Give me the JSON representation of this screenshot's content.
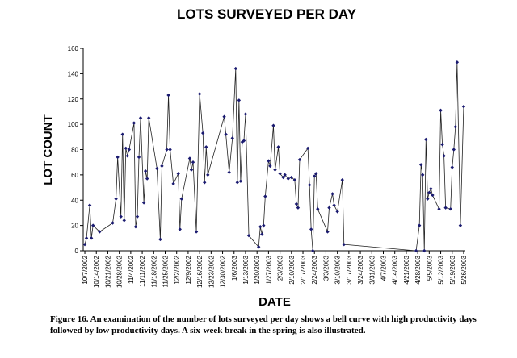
{
  "chart_data": {
    "type": "line",
    "title": "LOTS SURVEYED PER DAY",
    "x_label": "DATE",
    "y_label": "LOT COUNT",
    "caption": [
      "Figure 16.  An examination of the number of lots surveyed per day shows a bell curve with high productivity days",
      "followed by low productivity days.  A six-week break in the spring is also illustrated."
    ],
    "x": [
      "10/7/2002",
      "10/8/2002",
      "10/10/2002",
      "10/11/2002",
      "10/12/2002",
      "10/16/2002",
      "10/24/2002",
      "10/26/2002",
      "10/27/2002",
      "10/29/2002",
      "10/30/2002",
      "10/31/2002",
      "11/1/2002",
      "11/2/2002",
      "11/3/2002",
      "11/6/2002",
      "11/7/2002",
      "11/8/2002",
      "11/9/2002",
      "11/10/2002",
      "11/12/2002",
      "11/13/2002",
      "11/14/2002",
      "11/15/2002",
      "11/20/2002",
      "11/22/2002",
      "11/23/2002",
      "11/26/2002",
      "11/27/2002",
      "11/28/2002",
      "11/30/2002",
      "12/3/2002",
      "12/4/2002",
      "12/5/2002",
      "12/10/2002",
      "12/11/2002",
      "12/12/2002",
      "12/14/2002",
      "12/16/2002",
      "12/18/2002",
      "12/19/2002",
      "12/20/2002",
      "12/21/2002",
      "12/31/2002",
      "1/1/2003",
      "1/3/2003",
      "1/5/2003",
      "1/7/2003",
      "1/8/2003",
      "1/9/2003",
      "1/10/2003",
      "1/11/2003",
      "1/12/2003",
      "1/13/2003",
      "1/15/2003",
      "1/21/2003",
      "1/22/2003",
      "1/23/2003",
      "1/24/2003",
      "1/25/2003",
      "1/27/2003",
      "1/28/2003",
      "1/30/2003",
      "1/31/2003",
      "2/2/2003",
      "2/3/2003",
      "2/5/2003",
      "2/6/2003",
      "2/8/2003",
      "2/10/2003",
      "2/12/2003",
      "2/13/2003",
      "2/14/2003",
      "2/15/2003",
      "2/20/2003",
      "2/21/2003",
      "2/22/2003",
      "2/23/2003",
      "2/24/2003",
      "2/25/2003",
      "2/26/2003",
      "3/4/2003",
      "3/5/2003",
      "3/7/2003",
      "3/8/2003",
      "3/10/2003",
      "3/13/2003",
      "3/14/2003",
      "4/27/2003",
      "4/29/2003",
      "4/30/2003",
      "5/1/2003",
      "5/2/2003",
      "5/3/2003",
      "5/4/2003",
      "5/5/2003",
      "5/6/2003",
      "5/7/2003",
      "5/11/2003",
      "5/12/2003",
      "5/13/2003",
      "5/14/2003",
      "5/15/2003",
      "5/18/2003",
      "5/19/2003",
      "5/20/2003",
      "5/21/2003",
      "5/22/2003",
      "5/24/2003",
      "5/26/2003"
    ],
    "series": [
      {
        "color": "#1a1a70",
        "values": [
          5,
          10,
          36,
          10,
          20,
          15,
          22,
          41,
          74,
          27,
          92,
          24,
          81,
          75,
          80,
          101,
          19,
          27,
          74,
          105,
          38,
          63,
          57,
          105,
          65,
          9,
          67,
          80,
          123,
          80,
          53,
          61,
          17,
          41,
          73,
          64,
          70,
          15,
          124,
          93,
          54,
          82,
          60,
          106,
          92,
          62,
          89,
          144,
          54,
          119,
          55,
          86,
          87,
          108,
          12,
          3,
          19,
          13,
          20,
          43,
          71,
          67,
          99,
          64,
          82,
          61,
          58,
          60,
          57,
          58,
          56,
          37,
          34,
          72,
          81,
          52,
          17,
          0,
          59,
          61,
          33,
          15,
          34,
          45,
          36,
          31,
          56,
          5,
          0,
          20,
          68,
          60,
          0,
          88,
          41,
          46,
          49,
          44,
          33,
          111,
          84,
          75,
          34,
          33,
          66,
          80,
          98,
          149,
          20,
          114
        ]
      }
    ],
    "xlim": [
      "10/6/2002",
      "5/27/2003"
    ],
    "xticks": [
      "10/7/2002",
      "10/14/2002",
      "10/21/2002",
      "10/28/2002",
      "11/4/2002",
      "11/11/2002",
      "11/18/2002",
      "11/25/2002",
      "12/2/2002",
      "12/9/2002",
      "12/16/2002",
      "12/23/2002",
      "12/30/2002",
      "1/6/2003",
      "1/13/2003",
      "1/20/2003",
      "1/27/2003",
      "2/3/2003",
      "2/10/2003",
      "2/17/2003",
      "2/24/2003",
      "3/3/2003",
      "3/10/2003",
      "3/17/2003",
      "3/24/2003",
      "3/31/2003",
      "4/7/2003",
      "4/14/2003",
      "4/21/2003",
      "4/28/2003",
      "5/5/2003",
      "5/12/2003",
      "5/19/2003",
      "5/26/2003"
    ],
    "ylim": [
      0,
      160
    ],
    "yticks": [
      0,
      20,
      40,
      60,
      80,
      100,
      120,
      140,
      160
    ],
    "grid": false
  }
}
